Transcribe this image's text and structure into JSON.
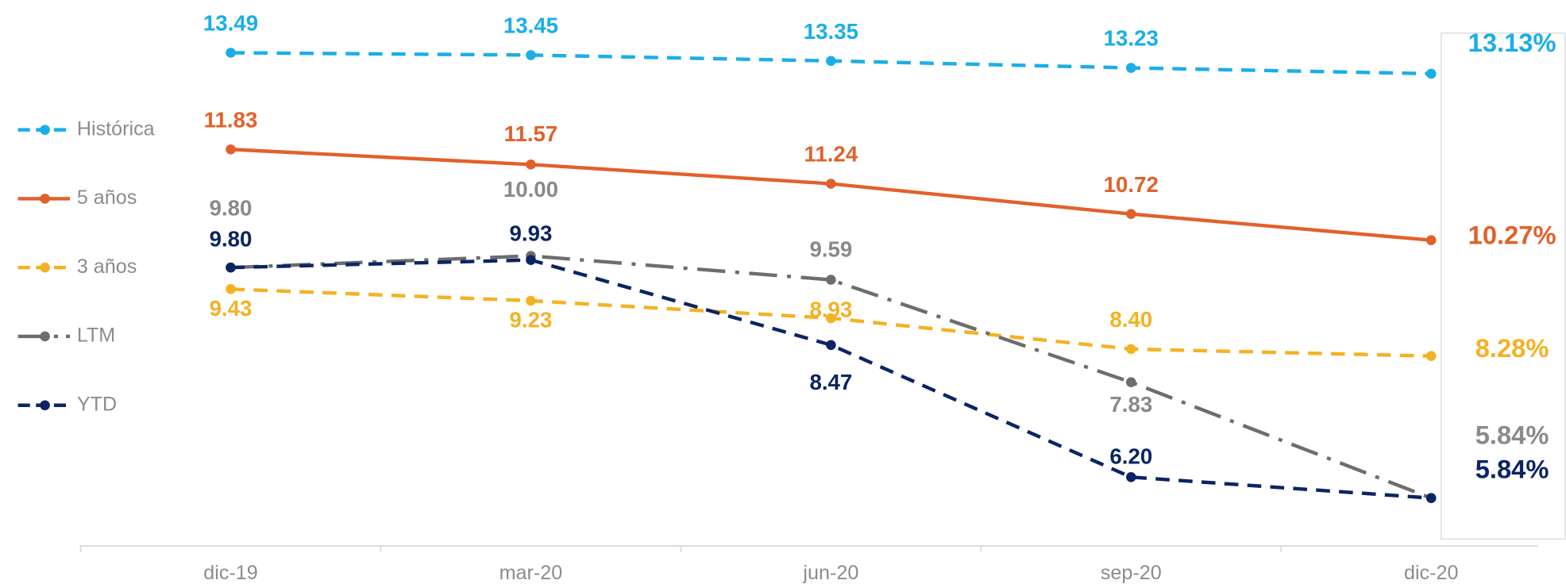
{
  "chart_data": {
    "type": "line",
    "categories": [
      "dic-19",
      "mar-20",
      "jun-20",
      "sep-20",
      "dic-20"
    ],
    "ylim": [
      5,
      14
    ],
    "series": [
      {
        "name": "Histórica",
        "color": "#1aaee8",
        "dash": "dashed",
        "values": [
          13.49,
          13.45,
          13.35,
          13.23,
          13.13
        ],
        "value_labels": [
          "13.49",
          "13.45",
          "13.35",
          "13.23",
          "13.13%"
        ]
      },
      {
        "name": "5 años",
        "color": "#e2612a",
        "dash": "solid",
        "values": [
          11.83,
          11.57,
          11.24,
          10.72,
          10.27
        ],
        "value_labels": [
          "11.83",
          "11.57",
          "11.24",
          "10.72",
          "10.27%"
        ]
      },
      {
        "name": "3 años",
        "color": "#f4b223",
        "dash": "dashed",
        "values": [
          9.43,
          9.23,
          8.93,
          8.4,
          8.28
        ],
        "value_labels": [
          "9.43",
          "9.23",
          "8.93",
          "8.40",
          "8.28%"
        ]
      },
      {
        "name": "LTM",
        "color": "#6d6d6d",
        "dash": "dashdot",
        "values": [
          9.8,
          10.0,
          9.59,
          7.83,
          5.84
        ],
        "value_labels": [
          "9.80",
          "10.00",
          "9.59",
          "7.83",
          "5.84%"
        ]
      },
      {
        "name": "YTD",
        "color": "#0b2463",
        "dash": "dashed",
        "values": [
          9.8,
          9.93,
          8.47,
          6.2,
          5.84
        ],
        "value_labels": [
          "9.80",
          "9.93",
          "8.47",
          "6.20",
          "5.84%"
        ]
      }
    ]
  }
}
